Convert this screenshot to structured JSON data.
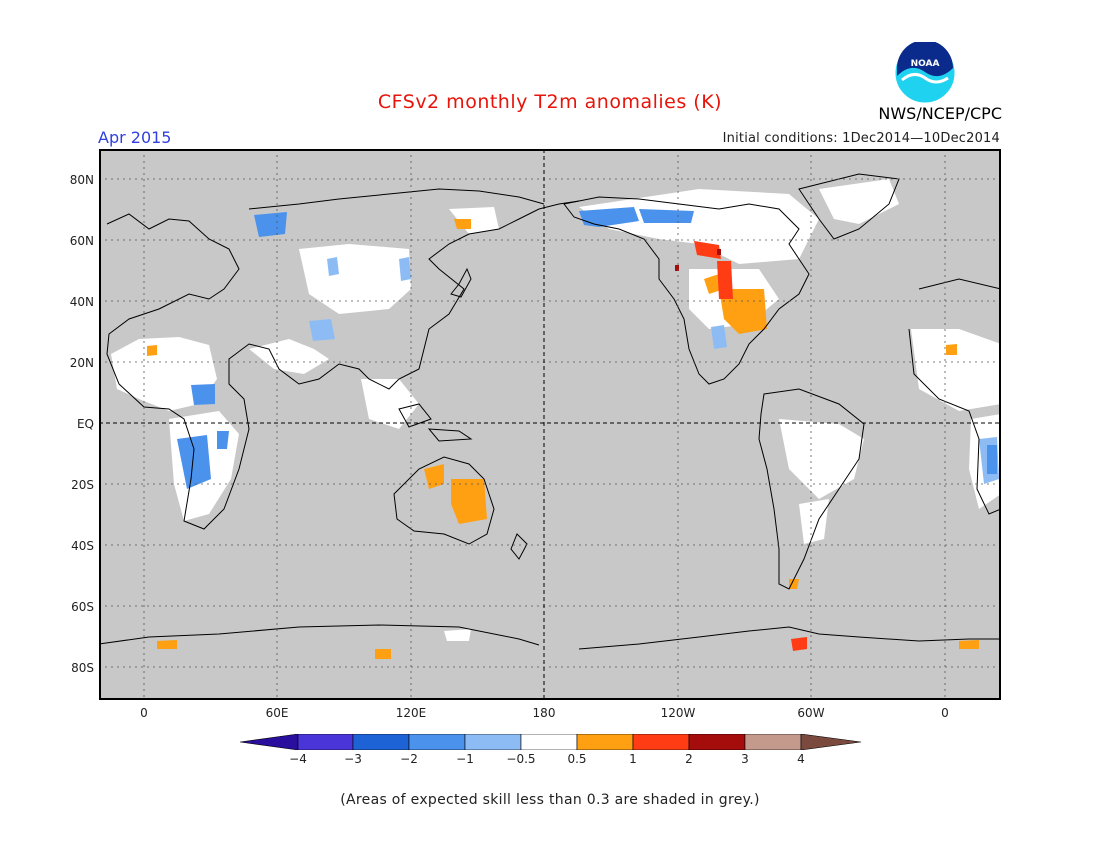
{
  "header": {
    "title": "CFSv2 monthly T2m anomalies (K)",
    "valid_month": "Apr 2015",
    "initial_conditions": "Initial conditions: 1Dec2014—10Dec2014",
    "agency": "NWS/NCEP/CPC",
    "logo_text": "NOAA"
  },
  "map": {
    "lat_labels": [
      "80N",
      "60N",
      "40N",
      "20N",
      "EQ",
      "20S",
      "40S",
      "60S",
      "80S"
    ],
    "lon_labels": [
      "0",
      "60E",
      "120E",
      "180",
      "120W",
      "60W",
      "0"
    ],
    "colors": {
      "land_fill": "#c8c8c8",
      "ocean_fill": "#c8c8c8",
      "coastline": "#000000",
      "neutral": "#ffffff"
    }
  },
  "legend": {
    "ticks": [
      "−4",
      "−3",
      "−2",
      "−1",
      "−0.5",
      "0.5",
      "1",
      "2",
      "3",
      "4"
    ],
    "colors": [
      "#2a0f9e",
      "#4a36d8",
      "#1e63d6",
      "#4a92ec",
      "#8dbcf5",
      "#ffffff",
      "#ffa012",
      "#ff3c14",
      "#a50c0c",
      "#c49a8c",
      "#7a4a3e"
    ]
  },
  "footnote": "(Areas of expected skill less than 0.3 are shaded in grey.)"
}
